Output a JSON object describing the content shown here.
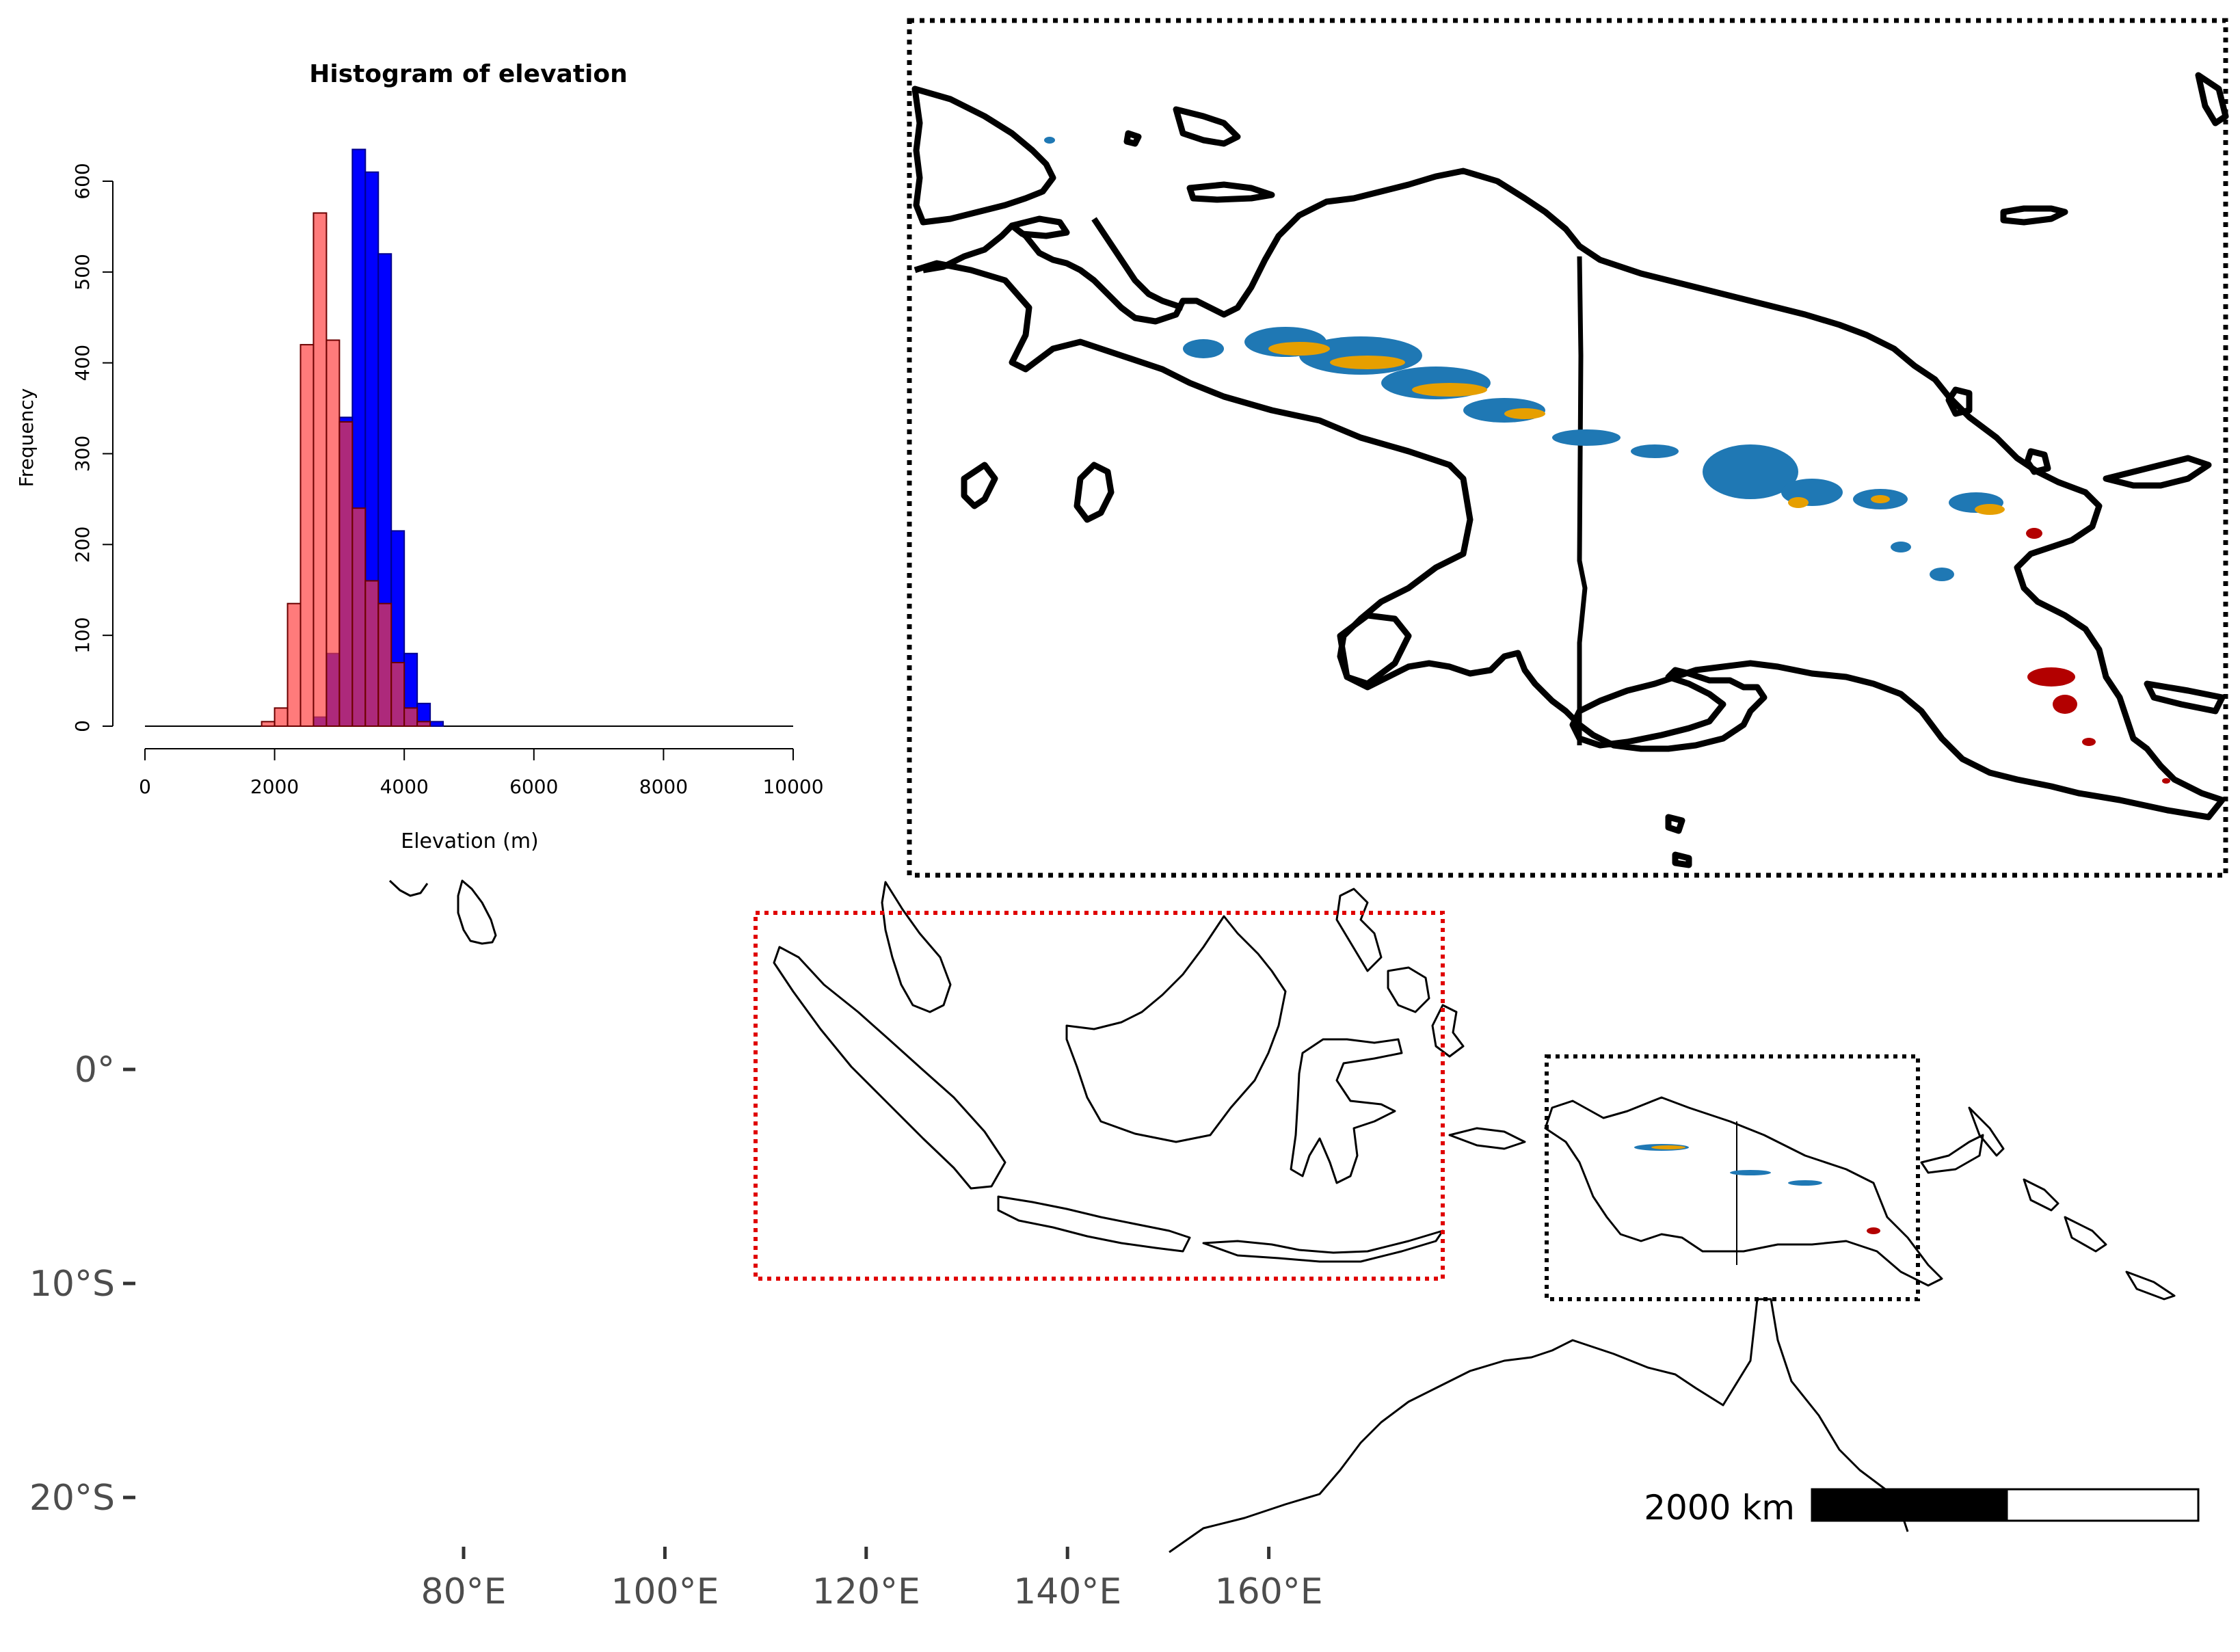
{
  "map": {
    "lat_axis": {
      "ticks": [
        {
          "label": "0°",
          "lat": 0
        },
        {
          "label": "10°S",
          "lat": -10
        },
        {
          "label": "20°S",
          "lat": -20
        }
      ]
    },
    "lon_axis": {
      "ticks": [
        {
          "label": "80°E",
          "lon": 80
        },
        {
          "label": "100°E",
          "lon": 100
        },
        {
          "label": "120°E",
          "lon": 120
        },
        {
          "label": "140°E",
          "lon": 140
        },
        {
          "label": "160°E",
          "lon": 160
        }
      ]
    },
    "scale_bar": {
      "label": "2000 km"
    },
    "colors": {
      "coastline": "#000000",
      "red_box": "#e00000",
      "black_box": "#000000",
      "elev_low": "#1f78b4",
      "elev_mid": "#e69f00",
      "elev_high": "#b30000"
    },
    "regions": {
      "red_box": {
        "lon": [
          94,
          127
        ],
        "lat": [
          -10,
          7
        ]
      },
      "black_box": {
        "lon": [
          131,
          150
        ],
        "lat": [
          -11,
          0.5
        ]
      }
    }
  },
  "histogram": {
    "chart_data": {
      "type": "bar",
      "title": "Histogram of elevation",
      "xlabel": "Elevation (m)",
      "ylabel": "Frequency",
      "xlim": [
        0,
        10000
      ],
      "ylim": [
        0,
        600
      ],
      "x_ticks": [
        "0",
        "2000",
        "4000",
        "6000",
        "8000",
        "10000"
      ],
      "y_ticks": [
        "0",
        "100",
        "200",
        "300",
        "400",
        "500",
        "600"
      ],
      "bin_width": 200,
      "series": [
        {
          "color": "#0000ff",
          "bins": [
            {
              "x0": 2600,
              "value": 10
            },
            {
              "x0": 2800,
              "value": 80
            },
            {
              "x0": 3000,
              "value": 340
            },
            {
              "x0": 3200,
              "value": 635
            },
            {
              "x0": 3400,
              "value": 610
            },
            {
              "x0": 3600,
              "value": 520
            },
            {
              "x0": 3800,
              "value": 215
            },
            {
              "x0": 4000,
              "value": 80
            },
            {
              "x0": 4200,
              "value": 25
            },
            {
              "x0": 4400,
              "value": 5
            }
          ]
        },
        {
          "color": "#ff7f7f",
          "bins": [
            {
              "x0": 1800,
              "value": 5
            },
            {
              "x0": 2000,
              "value": 20
            },
            {
              "x0": 2200,
              "value": 135
            },
            {
              "x0": 2400,
              "value": 420
            },
            {
              "x0": 2600,
              "value": 565
            },
            {
              "x0": 2800,
              "value": 425
            },
            {
              "x0": 3000,
              "value": 335
            },
            {
              "x0": 3200,
              "value": 240
            },
            {
              "x0": 3400,
              "value": 160
            },
            {
              "x0": 3600,
              "value": 135
            },
            {
              "x0": 3800,
              "value": 70
            },
            {
              "x0": 4000,
              "value": 20
            },
            {
              "x0": 4200,
              "value": 5
            }
          ]
        }
      ]
    }
  }
}
